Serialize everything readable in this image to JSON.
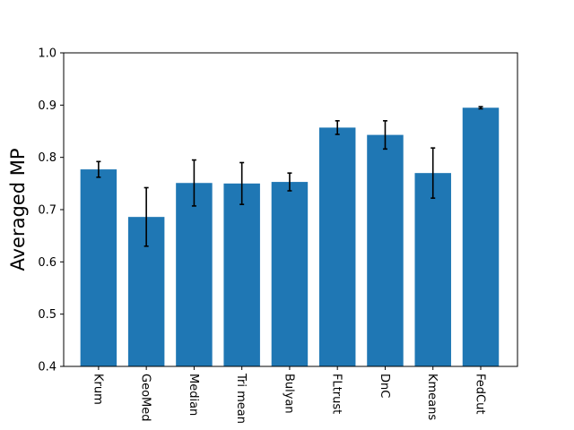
{
  "chart_data": {
    "type": "bar",
    "title": "",
    "xlabel": "",
    "ylabel": "Averaged MP",
    "ylim": [
      0.4,
      1.0
    ],
    "yticks": [
      "0.4",
      "0.5",
      "0.6",
      "0.7",
      "0.8",
      "0.9",
      "1.0"
    ],
    "grid": false,
    "categories": [
      "Krum",
      "GeoMed",
      "Median",
      "Tri mean",
      "Bulyan",
      "FLtrust",
      "DnC",
      "Kmeans",
      "FedCut"
    ],
    "values": [
      0.777,
      0.686,
      0.751,
      0.75,
      0.753,
      0.857,
      0.843,
      0.77,
      0.895
    ],
    "errors": [
      0.015,
      0.056,
      0.044,
      0.04,
      0.017,
      0.013,
      0.027,
      0.048,
      0.002
    ],
    "bar_color": "#1f77b4",
    "error_color": "#000000",
    "tick_label_rotation_deg": 90
  }
}
